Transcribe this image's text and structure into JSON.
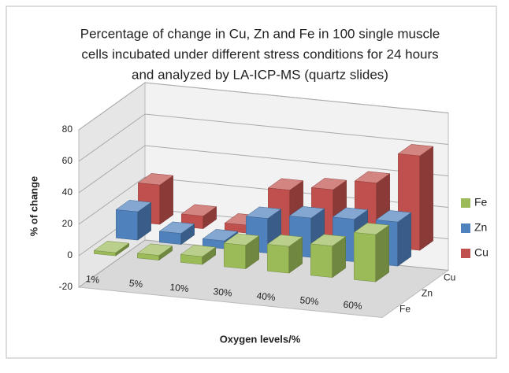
{
  "chart_data": {
    "type": "bar3d",
    "title": [
      "Percentage of change in Cu, Zn and Fe in 100 single muscle",
      "cells incubated under different stress conditions for 24 hours",
      "and analyzed by LA-ICP-MS (quartz slides)"
    ],
    "x_label": "Oxygen levels/%",
    "y_label": "% of change",
    "categories": [
      "1%",
      "5%",
      "10%",
      "30%",
      "40%",
      "50%",
      "60%"
    ],
    "series": [
      {
        "name": "Fe",
        "color": "#9bbb59",
        "values": [
          2,
          3,
          5,
          15,
          17,
          20,
          30
        ]
      },
      {
        "name": "Zn",
        "color": "#4f81bd",
        "values": [
          18,
          7,
          5,
          22,
          25,
          27,
          28
        ]
      },
      {
        "name": "Cu",
        "color": "#c0504d",
        "values": [
          25,
          8,
          5,
          30,
          33,
          40,
          60
        ]
      }
    ],
    "ylim": [
      -20,
      80
    ],
    "yticks": [
      -20,
      0,
      20,
      40,
      60,
      80
    ],
    "grid": true,
    "legend": "right"
  }
}
